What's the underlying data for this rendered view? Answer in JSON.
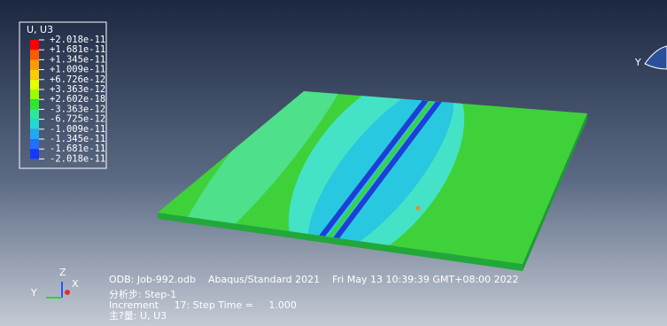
{
  "legend": {
    "title": "U, U3",
    "labels": [
      "+2.018e-11",
      "+1.681e-11",
      "+1.345e-11",
      "+1.009e-11",
      "+6.726e-12",
      "+3.363e-12",
      "+2.602e-18",
      "-3.363e-12",
      "-6.725e-12",
      "-1.009e-11",
      "-1.345e-11",
      "-1.681e-11",
      "-2.018e-11"
    ]
  },
  "view_triad": {
    "y": "Y"
  },
  "triad": {
    "z": "Z",
    "y": "Y",
    "x": "X"
  },
  "info": {
    "odb": "ODB: Job-992.odb    Abaqus/Standard 2021    Fri May 13 10:39:39 GMT+08:00 2022",
    "step": "分析步: Step-1",
    "increment": "Increment     17: Step Time =     1.000",
    "variable": "主?量: U, U3"
  }
}
